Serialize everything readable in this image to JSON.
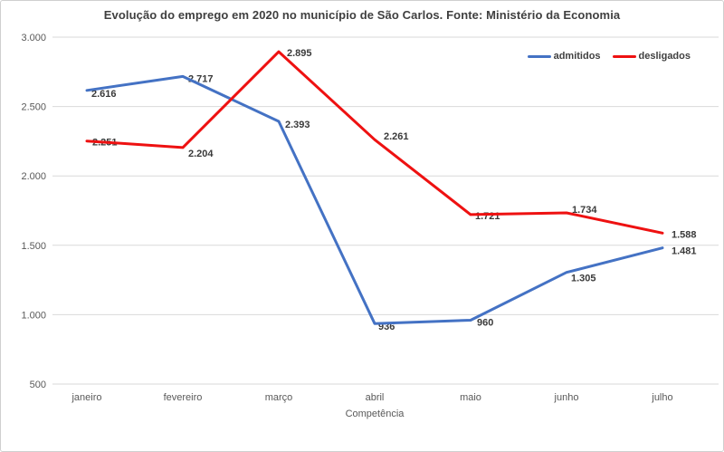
{
  "chart_data": {
    "type": "line",
    "title": "Evolução do emprego em 2020 no município de São Carlos. Fonte: Ministério da Economia",
    "xlabel": "Competência",
    "ylabel": "",
    "categories": [
      "janeiro",
      "fevereiro",
      "março",
      "abril",
      "maio",
      "junho",
      "julho"
    ],
    "series": [
      {
        "name": "admitidos",
        "color": "#4472c4",
        "values": [
          2616,
          2717,
          2393,
          936,
          960,
          1305,
          1481
        ],
        "labels": [
          "2.616",
          "2.717",
          "2.393",
          "936",
          "960",
          "1.305",
          "1.481"
        ]
      },
      {
        "name": "desligados",
        "color": "#ee1111",
        "values": [
          2251,
          2204,
          2895,
          2261,
          1721,
          1734,
          1588
        ],
        "labels": [
          "2.251",
          "2.204",
          "2.895",
          "2.261",
          "1.721",
          "1.734",
          "1.588"
        ]
      }
    ],
    "y_ticks": [
      {
        "value": 3000,
        "label": "3.000"
      },
      {
        "value": 2500,
        "label": "2.500"
      },
      {
        "value": 2000,
        "label": "2.000"
      },
      {
        "value": 1500,
        "label": "1.500"
      },
      {
        "value": 1000,
        "label": "1.000"
      },
      {
        "value": 500,
        "label": "500"
      }
    ],
    "ylim": [
      500,
      3000
    ],
    "grid": "horizontal",
    "gridline_color": "#d9d9d9",
    "legend_position": "top-right",
    "background": "#ffffff"
  }
}
